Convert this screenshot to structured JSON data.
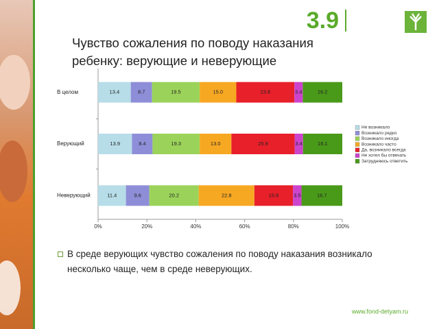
{
  "section": "3.9",
  "chart_data": {
    "type": "stacked_bar_horizontal",
    "title": "Чувство сожаления по поводу наказания ребенку: верующие и неверующие",
    "categories": [
      "В целом",
      "Верующий",
      "Неверующий"
    ],
    "series": [
      {
        "name": "Не возникало",
        "color": "#b7dde8",
        "values": [
          13.4,
          13.9,
          11.4
        ]
      },
      {
        "name": "Возникало редко",
        "color": "#8e8ed8",
        "values": [
          8.7,
          8.4,
          9.6
        ]
      },
      {
        "name": "Возникало иногда",
        "color": "#9bd35a",
        "values": [
          19.5,
          19.3,
          20.2
        ]
      },
      {
        "name": "Возникало часто",
        "color": "#f7a823",
        "values": [
          15.0,
          13.0,
          22.8
        ],
        "value_labels": [
          "15.0",
          "13.0",
          "22.8"
        ]
      },
      {
        "name": "Да, возникало всегда",
        "color": "#e8202a",
        "values": [
          23.8,
          25.9,
          15.8
        ]
      },
      {
        "name": "Не хотел бы отвечать",
        "color": "#cc44cc",
        "values": [
          3.4,
          3.4,
          3.5
        ]
      },
      {
        "name": "Затрудняюсь ответить",
        "color": "#4a9a1a",
        "values": [
          16.2,
          16.1,
          16.7
        ]
      }
    ],
    "xlim": [
      0,
      100
    ],
    "xticks": [
      {
        "value": 0,
        "label": "0%"
      },
      {
        "value": 20,
        "label": "20%"
      },
      {
        "value": 40,
        "label": "40%"
      },
      {
        "value": 60,
        "label": "60%"
      },
      {
        "value": 80,
        "label": "80%"
      },
      {
        "value": 100,
        "label": "100%"
      }
    ],
    "legend": "right"
  },
  "bullet": "В среде верующих чувство сожаления по поводу наказания возникало несколько чаще, чем в среде неверующих.",
  "url": "www.fond-detyam.ru"
}
